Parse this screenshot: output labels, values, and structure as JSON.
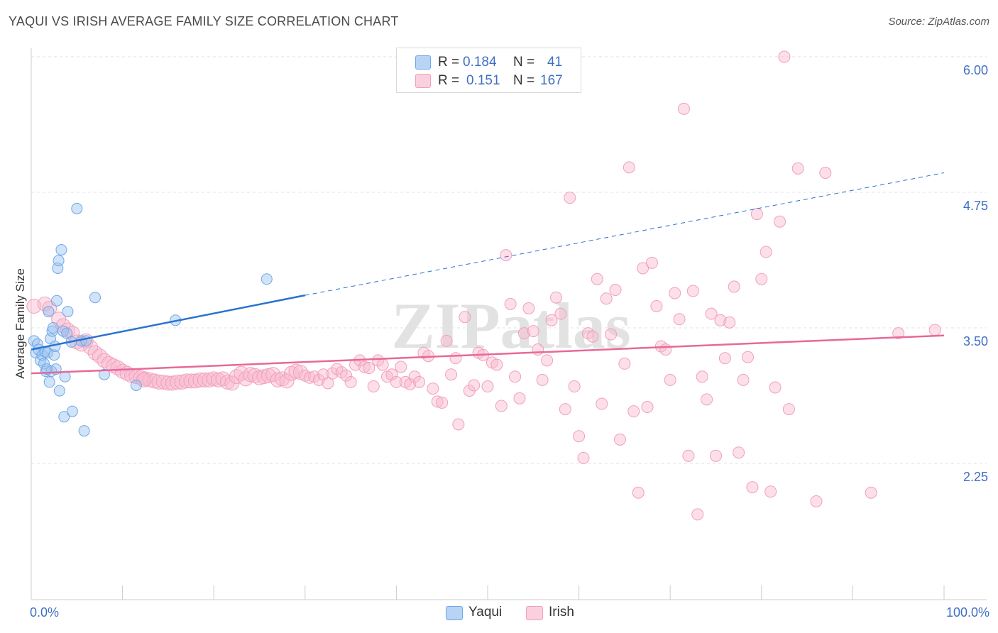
{
  "title": "YAQUI VS IRISH AVERAGE FAMILY SIZE CORRELATION CHART",
  "source": "Source: ZipAtlas.com",
  "colors": {
    "yaqui": "#6fa8e8",
    "yaqui_line": "#2a72cf",
    "irish": "#f1a0bb",
    "irish_line": "#e8689a",
    "axis_text": "#3f6fc4"
  },
  "legend": {
    "yaqui": {
      "r_label": "R =",
      "r_value": "0.184",
      "n_label": "N =",
      "n_value": "41"
    },
    "irish": {
      "r_label": "R =",
      "r_value": "0.151",
      "n_label": "N =",
      "n_value": "167"
    }
  },
  "bottom_legend": {
    "yaqui": "Yaqui",
    "irish": "Irish"
  },
  "watermark": "ZIPatlas",
  "chart_data": {
    "type": "scatter",
    "title": "YAQUI VS IRISH AVERAGE FAMILY SIZE CORRELATION CHART",
    "xlabel": "",
    "ylabel": "Average Family Size",
    "xlim": [
      0,
      100
    ],
    "ylim": [
      1.25,
      6.2
    ],
    "x_tick_labels": [
      "0.0%",
      "100.0%"
    ],
    "y_ticks": [
      2.25,
      3.5,
      4.75,
      6.0
    ],
    "y_tick_labels": [
      "2.25",
      "3.50",
      "4.75",
      "6.00"
    ],
    "grid": "horizontal dashed",
    "legend_position": "top-center",
    "series": [
      {
        "name": "Yaqui",
        "r": 0.184,
        "n": 41,
        "trend": {
          "x_start": 0,
          "y_start": 3.3,
          "x_end": 30,
          "y_end": 3.8,
          "x_dashed_end": 100,
          "y_dashed_end": 4.93
        },
        "points": [
          [
            0.3,
            3.38
          ],
          [
            0.5,
            3.27
          ],
          [
            0.7,
            3.35
          ],
          [
            0.8,
            3.3
          ],
          [
            1.0,
            3.2
          ],
          [
            1.2,
            3.25
          ],
          [
            1.4,
            3.17
          ],
          [
            1.5,
            3.28
          ],
          [
            1.6,
            3.1
          ],
          [
            1.8,
            3.27
          ],
          [
            1.9,
            3.65
          ],
          [
            2.0,
            3.0
          ],
          [
            2.1,
            3.4
          ],
          [
            2.2,
            3.1
          ],
          [
            2.3,
            3.47
          ],
          [
            2.4,
            3.5
          ],
          [
            2.5,
            3.25
          ],
          [
            2.6,
            3.33
          ],
          [
            2.7,
            3.12
          ],
          [
            2.8,
            3.75
          ],
          [
            2.9,
            4.05
          ],
          [
            3.0,
            4.12
          ],
          [
            3.1,
            2.92
          ],
          [
            3.3,
            4.22
          ],
          [
            3.5,
            3.47
          ],
          [
            3.6,
            2.68
          ],
          [
            3.7,
            3.05
          ],
          [
            3.9,
            3.45
          ],
          [
            4.0,
            3.65
          ],
          [
            4.4,
            3.37
          ],
          [
            4.5,
            2.73
          ],
          [
            5.0,
            4.6
          ],
          [
            5.5,
            3.38
          ],
          [
            5.8,
            2.55
          ],
          [
            6.0,
            3.38
          ],
          [
            7.0,
            3.78
          ],
          [
            8.0,
            3.07
          ],
          [
            11.5,
            2.97
          ],
          [
            15.8,
            3.57
          ],
          [
            25.8,
            3.95
          ],
          [
            1.7,
            3.12
          ]
        ]
      },
      {
        "name": "Irish",
        "r": 0.151,
        "n": 167,
        "trend": {
          "x_start": 0,
          "y_start": 3.08,
          "x_end": 100,
          "y_end": 3.43
        },
        "points": [
          [
            0.3,
            3.7
          ],
          [
            1.5,
            3.72
          ],
          [
            2.0,
            3.68
          ],
          [
            3.0,
            3.58
          ],
          [
            3.5,
            3.52
          ],
          [
            4.0,
            3.48
          ],
          [
            4.5,
            3.45
          ],
          [
            5.0,
            3.37
          ],
          [
            5.5,
            3.35
          ],
          [
            6.0,
            3.38
          ],
          [
            6.5,
            3.32
          ],
          [
            7.0,
            3.27
          ],
          [
            7.5,
            3.24
          ],
          [
            8.0,
            3.2
          ],
          [
            8.5,
            3.17
          ],
          [
            9.0,
            3.15
          ],
          [
            9.5,
            3.13
          ],
          [
            10.0,
            3.1
          ],
          [
            10.5,
            3.08
          ],
          [
            11.0,
            3.06
          ],
          [
            11.5,
            3.05
          ],
          [
            12.0,
            3.04
          ],
          [
            12.5,
            3.03
          ],
          [
            13.0,
            3.02
          ],
          [
            13.5,
            3.01
          ],
          [
            14.0,
            3.0
          ],
          [
            14.5,
            3.0
          ],
          [
            15.0,
            2.99
          ],
          [
            15.5,
            2.99
          ],
          [
            16.0,
            3.0
          ],
          [
            16.5,
            3.0
          ],
          [
            17.0,
            3.01
          ],
          [
            17.5,
            3.01
          ],
          [
            18.0,
            3.01
          ],
          [
            18.5,
            3.02
          ],
          [
            19.0,
            3.02
          ],
          [
            19.5,
            3.02
          ],
          [
            20.0,
            3.03
          ],
          [
            20.5,
            3.02
          ],
          [
            21.0,
            3.03
          ],
          [
            21.5,
            3.0
          ],
          [
            22.0,
            2.99
          ],
          [
            22.5,
            3.05
          ],
          [
            23.0,
            3.08
          ],
          [
            23.5,
            3.03
          ],
          [
            24.0,
            3.07
          ],
          [
            24.5,
            3.06
          ],
          [
            25.0,
            3.04
          ],
          [
            25.5,
            3.05
          ],
          [
            26.0,
            3.06
          ],
          [
            26.5,
            3.07
          ],
          [
            27.0,
            3.02
          ],
          [
            27.5,
            3.03
          ],
          [
            28.0,
            3.01
          ],
          [
            28.5,
            3.08
          ],
          [
            29.0,
            3.1
          ],
          [
            29.5,
            3.09
          ],
          [
            30.0,
            3.06
          ],
          [
            30.5,
            3.04
          ],
          [
            31.0,
            3.05
          ],
          [
            31.5,
            3.02
          ],
          [
            32.0,
            3.07
          ],
          [
            32.5,
            2.99
          ],
          [
            33.0,
            3.08
          ],
          [
            33.5,
            3.12
          ],
          [
            34.0,
            3.09
          ],
          [
            34.5,
            3.06
          ],
          [
            35.0,
            3.0
          ],
          [
            35.5,
            3.16
          ],
          [
            36.0,
            3.2
          ],
          [
            36.5,
            3.14
          ],
          [
            37.0,
            3.13
          ],
          [
            37.5,
            2.96
          ],
          [
            38.0,
            3.2
          ],
          [
            38.5,
            3.16
          ],
          [
            39.0,
            3.05
          ],
          [
            39.5,
            3.07
          ],
          [
            40.0,
            3.0
          ],
          [
            40.5,
            3.14
          ],
          [
            41.0,
            3.0
          ],
          [
            41.5,
            2.98
          ],
          [
            42.0,
            3.05
          ],
          [
            42.5,
            3.0
          ],
          [
            43.0,
            3.27
          ],
          [
            43.5,
            3.24
          ],
          [
            44.0,
            2.94
          ],
          [
            44.5,
            2.82
          ],
          [
            45.0,
            2.81
          ],
          [
            45.5,
            3.38
          ],
          [
            46.0,
            3.07
          ],
          [
            46.5,
            3.22
          ],
          [
            46.8,
            2.61
          ],
          [
            47.5,
            3.6
          ],
          [
            48.0,
            2.92
          ],
          [
            48.5,
            2.97
          ],
          [
            49.0,
            3.27
          ],
          [
            49.5,
            3.25
          ],
          [
            50.0,
            2.96
          ],
          [
            50.5,
            3.18
          ],
          [
            51.0,
            3.16
          ],
          [
            51.5,
            2.78
          ],
          [
            52.0,
            4.17
          ],
          [
            52.5,
            3.72
          ],
          [
            53.0,
            3.05
          ],
          [
            53.5,
            2.85
          ],
          [
            54.0,
            3.45
          ],
          [
            54.5,
            3.68
          ],
          [
            55.0,
            3.47
          ],
          [
            55.5,
            3.3
          ],
          [
            56.0,
            3.02
          ],
          [
            56.5,
            3.2
          ],
          [
            57.0,
            3.57
          ],
          [
            57.5,
            3.78
          ],
          [
            58.0,
            3.63
          ],
          [
            58.5,
            2.75
          ],
          [
            59.0,
            4.7
          ],
          [
            59.5,
            2.96
          ],
          [
            60.0,
            2.5
          ],
          [
            60.5,
            2.3
          ],
          [
            61.0,
            3.45
          ],
          [
            61.5,
            3.42
          ],
          [
            62.0,
            3.95
          ],
          [
            62.5,
            2.8
          ],
          [
            63.0,
            3.77
          ],
          [
            63.5,
            3.44
          ],
          [
            64.0,
            3.85
          ],
          [
            64.5,
            2.47
          ],
          [
            65.0,
            3.17
          ],
          [
            65.5,
            4.98
          ],
          [
            66.0,
            2.73
          ],
          [
            66.5,
            1.98
          ],
          [
            67.0,
            4.05
          ],
          [
            67.5,
            2.77
          ],
          [
            68.0,
            4.1
          ],
          [
            68.5,
            3.7
          ],
          [
            69.0,
            3.33
          ],
          [
            69.5,
            3.3
          ],
          [
            70.0,
            3.02
          ],
          [
            70.5,
            3.82
          ],
          [
            71.0,
            3.58
          ],
          [
            71.5,
            5.52
          ],
          [
            72.0,
            2.32
          ],
          [
            72.5,
            3.84
          ],
          [
            73.0,
            1.78
          ],
          [
            73.5,
            3.05
          ],
          [
            74.0,
            2.84
          ],
          [
            74.5,
            3.63
          ],
          [
            75.0,
            2.32
          ],
          [
            75.5,
            3.57
          ],
          [
            76.0,
            3.22
          ],
          [
            76.5,
            3.55
          ],
          [
            77.0,
            3.88
          ],
          [
            77.5,
            2.35
          ],
          [
            78.0,
            3.02
          ],
          [
            78.5,
            3.23
          ],
          [
            79.0,
            2.03
          ],
          [
            79.5,
            4.55
          ],
          [
            80.0,
            3.95
          ],
          [
            80.5,
            4.2
          ],
          [
            81.0,
            1.99
          ],
          [
            81.5,
            2.95
          ],
          [
            82.0,
            4.48
          ],
          [
            82.5,
            6.0
          ],
          [
            83.0,
            2.75
          ],
          [
            84.0,
            4.97
          ],
          [
            86.0,
            1.9
          ],
          [
            87.0,
            4.93
          ],
          [
            92.0,
            1.98
          ],
          [
            95.0,
            3.45
          ],
          [
            99.0,
            3.48
          ],
          [
            12.3,
            3.02
          ]
        ]
      }
    ]
  }
}
